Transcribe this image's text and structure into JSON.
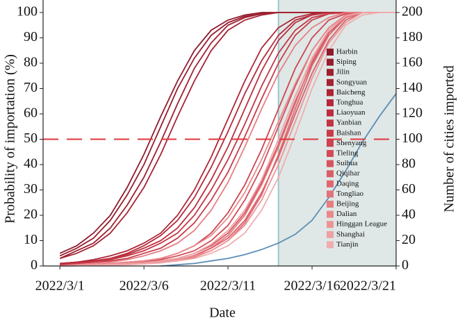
{
  "chart_data": {
    "type": "line",
    "x_label": "Date",
    "y_label": "Probability of importation (%)",
    "y2_label": "Number of cities imported",
    "x": [
      "2022/3/1",
      "2022/3/2",
      "2022/3/3",
      "2022/3/4",
      "2022/3/5",
      "2022/3/6",
      "2022/3/7",
      "2022/3/8",
      "2022/3/9",
      "2022/3/10",
      "2022/3/11",
      "2022/3/12",
      "2022/3/13",
      "2022/3/14",
      "2022/3/15",
      "2022/3/16",
      "2022/3/17",
      "2022/3/18",
      "2022/3/19",
      "2022/3/20",
      "2022/3/21"
    ],
    "xlim": [
      "2022/2/28",
      "2022/3/21"
    ],
    "xticks": [
      "2022/3/1",
      "2022/3/6",
      "2022/3/11",
      "2022/3/16",
      "2022/3/21"
    ],
    "ylim": [
      0,
      100
    ],
    "yticks": [
      0,
      10,
      20,
      30,
      40,
      50,
      60,
      70,
      80,
      90,
      100
    ],
    "y2lim": [
      0,
      200
    ],
    "y2ticks": [
      0,
      20,
      40,
      60,
      80,
      100,
      120,
      140,
      160,
      180,
      200
    ],
    "hline": {
      "value": 50,
      "color": "#e0353a"
    },
    "vline": {
      "x": "2022/3/14",
      "color": "#9cc6cc",
      "shade": "#dfe8e6"
    },
    "legend": "upper right",
    "series": [
      {
        "name": "Harbin",
        "color": "#8e1b2c",
        "values": [
          5,
          8,
          13,
          20,
          31,
          44,
          59,
          73,
          85,
          93,
          97,
          99,
          100,
          100,
          100,
          100,
          100,
          100,
          100,
          100,
          100
        ]
      },
      {
        "name": "Siping",
        "color": "#961d2e",
        "values": [
          4,
          7,
          11,
          18,
          28,
          40,
          55,
          70,
          82,
          91,
          96,
          98.5,
          99.5,
          100,
          100,
          100,
          100,
          100,
          100,
          100,
          100
        ]
      },
      {
        "name": "Jilin",
        "color": "#9d1f30",
        "values": [
          3,
          6,
          9,
          15,
          24,
          35,
          49,
          64,
          78,
          88,
          95,
          98,
          99.5,
          100,
          100,
          100,
          100,
          100,
          100,
          100,
          100
        ]
      },
      {
        "name": "Songyuan",
        "color": "#a52233",
        "values": [
          3,
          5,
          8,
          13,
          21,
          31,
          44,
          59,
          73,
          85,
          93,
          97,
          99,
          100,
          100,
          100,
          100,
          100,
          100,
          100,
          100
        ]
      },
      {
        "name": "Baicheng",
        "color": "#ad2636",
        "values": [
          1,
          1.5,
          2.5,
          4,
          6,
          9,
          13,
          20,
          30,
          43,
          58,
          73,
          86,
          94,
          98,
          99.5,
          100,
          100,
          100,
          100,
          100
        ]
      },
      {
        "name": "Tonghua",
        "color": "#b4293a",
        "values": [
          1,
          1.5,
          2,
          3,
          5,
          8,
          12,
          18,
          27,
          39,
          53,
          68,
          81,
          91,
          97,
          99,
          100,
          100,
          100,
          100,
          100
        ]
      },
      {
        "name": "Liaoyuan",
        "color": "#bb2e3e",
        "values": [
          0.5,
          1,
          2,
          3,
          4.5,
          7,
          10,
          15,
          23,
          34,
          47,
          62,
          77,
          89,
          96,
          99,
          100,
          100,
          100,
          100,
          100
        ]
      },
      {
        "name": "Yanbian",
        "color": "#c23443",
        "values": [
          0.5,
          1,
          1.5,
          2.5,
          4,
          6,
          9,
          13,
          20,
          30,
          42,
          56,
          71,
          84,
          93,
          98,
          99.5,
          100,
          100,
          100,
          100
        ]
      },
      {
        "name": "Baishan",
        "color": "#c83b48",
        "values": [
          0.5,
          1,
          1.5,
          2,
          3,
          5,
          7,
          11,
          17,
          26,
          37,
          51,
          66,
          80,
          91,
          97,
          99.5,
          100,
          100,
          100,
          100
        ]
      },
      {
        "name": "Shenyang",
        "color": "#cd434f",
        "values": [
          0,
          0.5,
          0.6,
          1,
          1.5,
          2,
          3,
          5,
          8,
          13,
          21,
          32,
          46,
          62,
          78,
          90,
          97,
          99.5,
          100,
          100,
          100
        ]
      },
      {
        "name": "Tieling",
        "color": "#d24b56",
        "values": [
          0,
          0.2,
          0.5,
          0.8,
          1,
          1.5,
          2.5,
          4,
          6,
          10,
          16,
          26,
          39,
          55,
          71,
          85,
          94,
          99,
          100,
          100,
          100
        ]
      },
      {
        "name": "Suihua",
        "color": "#d7545e",
        "values": [
          0,
          0.2,
          0.4,
          0.6,
          1,
          1.4,
          2,
          3,
          5,
          8,
          13,
          21,
          33,
          48,
          65,
          80,
          92,
          98,
          100,
          100,
          100
        ]
      },
      {
        "name": "Qiqihar",
        "color": "#db5e67",
        "values": [
          0,
          0.1,
          0.3,
          0.5,
          0.8,
          1.1,
          1.6,
          2.5,
          4,
          7,
          11,
          18,
          29,
          43,
          60,
          76,
          89,
          97,
          100,
          100,
          100
        ]
      },
      {
        "name": "Daqing",
        "color": "#df6870",
        "values": [
          0,
          0.1,
          0.2,
          0.4,
          0.6,
          0.9,
          1.4,
          2,
          3.5,
          6,
          10,
          17,
          28,
          44,
          62,
          79,
          91,
          98,
          100,
          100,
          100
        ]
      },
      {
        "name": "Tongliao",
        "color": "#e3737a",
        "values": [
          0,
          0.1,
          0.3,
          0.5,
          0.7,
          1,
          1.5,
          2.4,
          4.2,
          7.2,
          12,
          20,
          32,
          47,
          64,
          81,
          93,
          98.5,
          100,
          100,
          100
        ]
      },
      {
        "name": "Beijing",
        "color": "#e67e84",
        "values": [
          0,
          0.5,
          1,
          1.5,
          2.5,
          4,
          6,
          9,
          14,
          22,
          33,
          47,
          62,
          76,
          87,
          94,
          98,
          100,
          100,
          100,
          100
        ]
      },
      {
        "name": "Dalian",
        "color": "#e9898e",
        "values": [
          0,
          0.3,
          0.5,
          1,
          1.5,
          2,
          3,
          5,
          8,
          12,
          19,
          29,
          42,
          57,
          72,
          85,
          94,
          99,
          100,
          100,
          100
        ]
      },
      {
        "name": "Hinggan League",
        "color": "#ec9598",
        "values": [
          0,
          0.1,
          0.2,
          0.5,
          0.7,
          1,
          1.5,
          2.5,
          3.8,
          6,
          10,
          16,
          26,
          40,
          57,
          74,
          88,
          96,
          100,
          100,
          100
        ]
      },
      {
        "name": "Shanghai",
        "color": "#eea0a3",
        "values": [
          0,
          0.2,
          0.4,
          0.6,
          0.9,
          1.3,
          2,
          3,
          5,
          8.5,
          14,
          22,
          34,
          50,
          67,
          82,
          93,
          98.5,
          100,
          100,
          100
        ]
      },
      {
        "name": "Tianjin",
        "color": "#f1acae",
        "values": [
          0,
          0.1,
          0.2,
          0.3,
          0.5,
          0.8,
          1.2,
          2,
          3,
          5,
          8,
          13,
          22,
          35,
          52,
          70,
          85,
          95,
          99,
          100,
          100
        ]
      },
      {
        "axis": "y2",
        "color": "#5b8db5",
        "values": [
          null,
          null,
          null,
          null,
          null,
          null,
          0,
          1,
          2,
          4,
          6,
          9,
          13,
          18,
          25,
          36,
          54,
          75,
          98,
          118,
          136
        ]
      }
    ]
  }
}
